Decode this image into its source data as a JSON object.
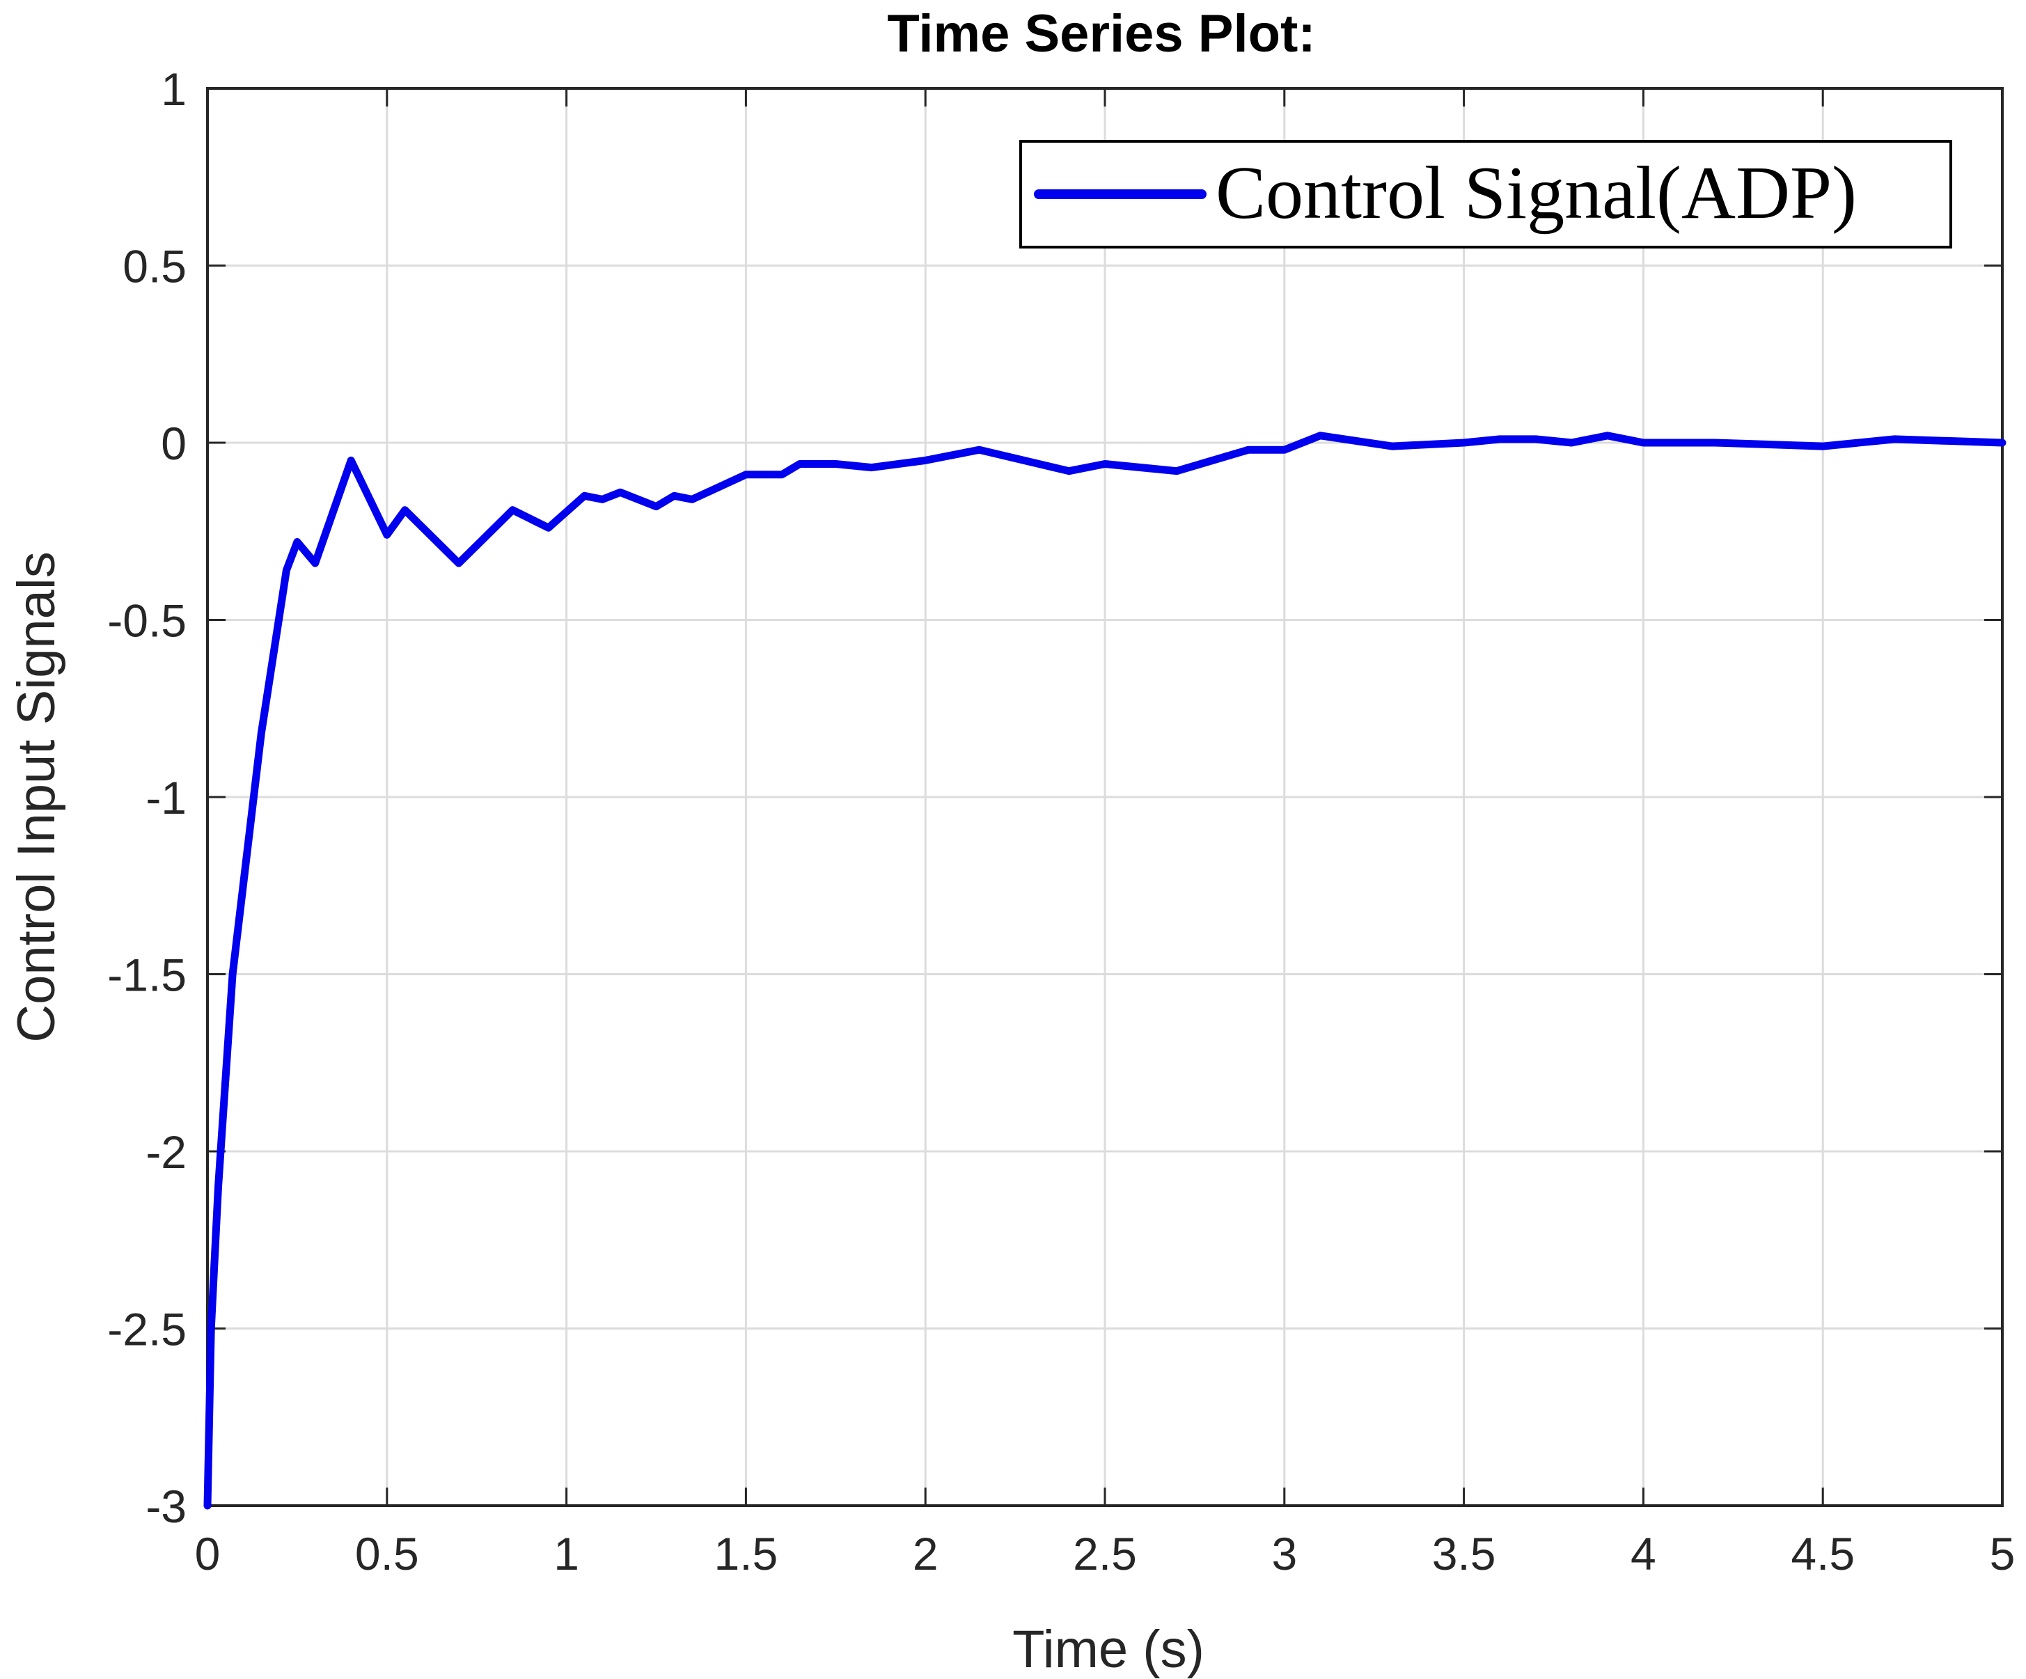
{
  "chart_data": {
    "type": "line",
    "title": "Time Series Plot:",
    "xlabel": "Time (s)",
    "ylabel": "Control Input Signals",
    "xlim": [
      0,
      5
    ],
    "ylim": [
      -3,
      1
    ],
    "xticks": [
      0,
      0.5,
      1,
      1.5,
      2,
      2.5,
      3,
      3.5,
      4,
      4.5,
      5
    ],
    "xtick_labels": [
      "0",
      "0.5",
      "1",
      "1.5",
      "2",
      "2.5",
      "3",
      "3.5",
      "4",
      "4.5",
      "5"
    ],
    "yticks": [
      -3,
      -2.5,
      -2,
      -1.5,
      -1,
      -0.5,
      0,
      0.5,
      1
    ],
    "ytick_labels": [
      "-3",
      "-2.5",
      "-2",
      "-1.5",
      "-1",
      "-0.5",
      "0",
      "0.5",
      "1"
    ],
    "grid": true,
    "legend_position": "top-right",
    "series": [
      {
        "name": "Control Signal(ADP)",
        "color": "#0000ee",
        "x": [
          0,
          0.01,
          0.03,
          0.07,
          0.15,
          0.22,
          0.25,
          0.3,
          0.4,
          0.5,
          0.55,
          0.7,
          0.85,
          0.95,
          1.05,
          1.1,
          1.15,
          1.25,
          1.3,
          1.35,
          1.5,
          1.6,
          1.65,
          1.75,
          1.85,
          2.0,
          2.15,
          2.4,
          2.5,
          2.7,
          2.9,
          3.0,
          3.1,
          3.3,
          3.5,
          3.6,
          3.7,
          3.8,
          3.9,
          4.0,
          4.2,
          4.5,
          4.7,
          5.0
        ],
        "y": [
          -3.0,
          -2.5,
          -2.1,
          -1.5,
          -0.82,
          -0.36,
          -0.28,
          -0.34,
          -0.05,
          -0.26,
          -0.19,
          -0.34,
          -0.19,
          -0.24,
          -0.15,
          -0.16,
          -0.14,
          -0.18,
          -0.15,
          -0.16,
          -0.09,
          -0.09,
          -0.06,
          -0.06,
          -0.07,
          -0.05,
          -0.02,
          -0.08,
          -0.06,
          -0.08,
          -0.02,
          -0.02,
          0.02,
          -0.01,
          0.0,
          0.01,
          0.01,
          0.0,
          0.02,
          0.0,
          0.0,
          -0.01,
          0.01,
          0.0
        ]
      }
    ]
  }
}
